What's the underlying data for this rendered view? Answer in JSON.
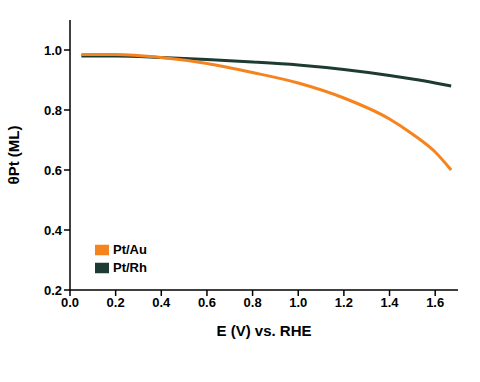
{
  "chart_data": {
    "type": "line",
    "x_label": "E (V) vs. RHE",
    "y_label": "θPt (ML)",
    "x": [
      0.05,
      0.2,
      0.4,
      0.6,
      0.8,
      1.0,
      1.2,
      1.4,
      1.5,
      1.6,
      1.67
    ],
    "series": [
      {
        "name": "Pt/Rh",
        "color": "#1d3b33",
        "values": [
          0.98,
          0.98,
          0.975,
          0.968,
          0.96,
          0.95,
          0.935,
          0.915,
          0.903,
          0.89,
          0.88
        ]
      },
      {
        "name": "Pt/Au",
        "color": "#f5841f",
        "values": [
          0.985,
          0.985,
          0.975,
          0.955,
          0.925,
          0.89,
          0.84,
          0.77,
          0.72,
          0.66,
          0.6
        ]
      }
    ],
    "xlim": [
      0,
      1.7
    ],
    "ylim": [
      0.2,
      1.1
    ],
    "xticks": [
      {
        "value": 0,
        "label": "0.0"
      },
      0.2,
      0.4,
      0.6,
      0.8,
      {
        "value": 1,
        "label": "1.0"
      },
      1.2,
      1.4,
      1.6
    ],
    "yticks": [
      0.2,
      0.4,
      0.6,
      0.8,
      {
        "value": 1,
        "label": "1.0"
      }
    ],
    "grid": false,
    "legend": "lower left"
  }
}
